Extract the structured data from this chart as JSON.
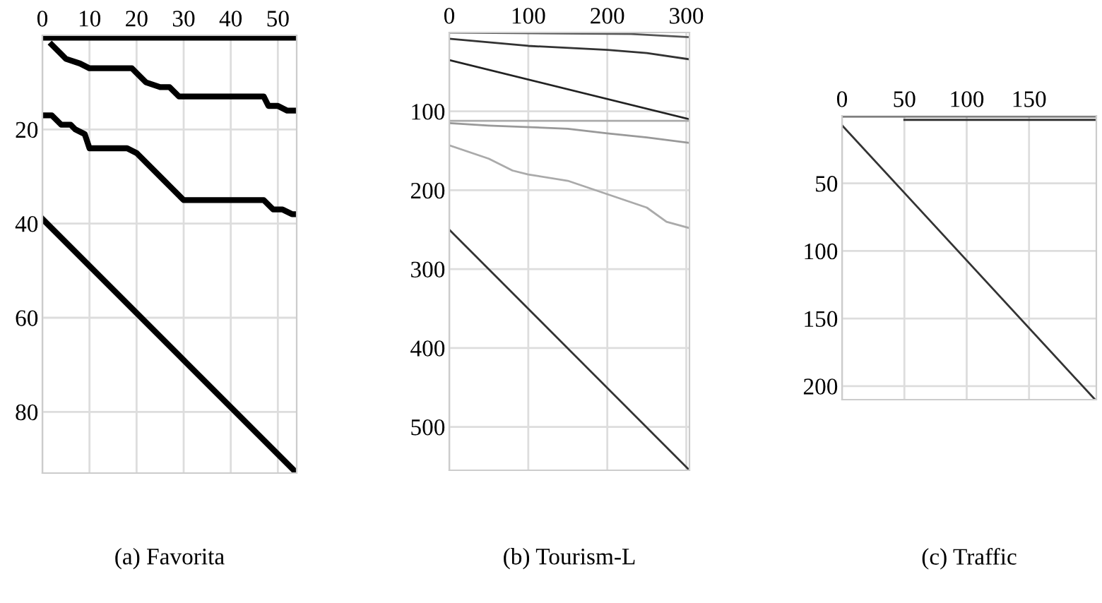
{
  "chart_data": [
    {
      "type": "line",
      "xlabel": "(a) Favorita",
      "xlim": [
        0,
        54
      ],
      "ylim": [
        93,
        0
      ],
      "xticks": [
        0,
        10,
        20,
        30,
        40,
        50
      ],
      "yticks": [
        20,
        40,
        60,
        80
      ],
      "grid": true,
      "legend": false,
      "line_style": "solid",
      "marker": "none",
      "series": [
        {
          "color": "#000000",
          "x": [
            0,
            54
          ],
          "values": [
            0.5,
            0.5
          ]
        },
        {
          "color": "#000000",
          "x": [
            2,
            4,
            5,
            8,
            10,
            19,
            20,
            22,
            25,
            27,
            29,
            47,
            48,
            50,
            52,
            54
          ],
          "values": [
            2,
            4,
            5,
            6,
            7,
            7,
            8,
            10,
            11,
            11,
            13,
            13,
            15,
            15,
            16,
            16
          ]
        },
        {
          "color": "#000000",
          "x": [
            0,
            2,
            4,
            6,
            7,
            9,
            10,
            18,
            20,
            27,
            30,
            47,
            49,
            51,
            53,
            54
          ],
          "values": [
            17,
            17,
            19,
            19,
            20,
            21,
            24,
            24,
            25,
            32,
            35,
            35,
            37,
            37,
            38,
            38
          ]
        },
        {
          "color": "#000000",
          "x": [
            0,
            54
          ],
          "values": [
            39,
            93
          ]
        }
      ]
    },
    {
      "type": "line",
      "xlabel": "(b) Tourism-L",
      "xlim": [
        0,
        304
      ],
      "ylim": [
        555,
        0
      ],
      "xticks": [
        0,
        100,
        200,
        300
      ],
      "yticks": [
        100,
        200,
        300,
        400,
        500
      ],
      "grid": true,
      "legend": false,
      "line_style": "solid",
      "marker": "none",
      "series": [
        {
          "color": "#555555",
          "x": [
            0,
            230,
            304
          ],
          "values": [
            0,
            2,
            6
          ]
        },
        {
          "color": "#333333",
          "x": [
            0,
            100,
            200,
            250,
            304
          ],
          "values": [
            8,
            17,
            22,
            26,
            34
          ]
        },
        {
          "color": "#222222",
          "x": [
            0,
            304
          ],
          "values": [
            35,
            110
          ]
        },
        {
          "color": "#aaaaaa",
          "x": [
            0,
            304
          ],
          "values": [
            112,
            112
          ]
        },
        {
          "color": "#999999",
          "x": [
            0,
            50,
            150,
            200,
            250,
            304
          ],
          "values": [
            115,
            118,
            122,
            128,
            133,
            140
          ]
        },
        {
          "color": "#aaaaaa",
          "x": [
            0,
            50,
            80,
            100,
            150,
            200,
            250,
            275,
            304
          ],
          "values": [
            143,
            160,
            175,
            180,
            188,
            205,
            222,
            240,
            248
          ]
        },
        {
          "color": "#333333",
          "x": [
            0,
            304
          ],
          "values": [
            250,
            555
          ]
        }
      ]
    },
    {
      "type": "line",
      "xlabel": "(c) Traffic",
      "xlim": [
        0,
        204
      ],
      "ylim": [
        210,
        0
      ],
      "xticks": [
        0,
        50,
        100,
        150
      ],
      "yticks": [
        50,
        100,
        150,
        200
      ],
      "grid": true,
      "legend": false,
      "line_style": "solid",
      "marker": "none",
      "series": [
        {
          "color": "#333333",
          "x": [
            0,
            204
          ],
          "values": [
            0.5,
            0.5
          ]
        },
        {
          "color": "#333333",
          "x": [
            50,
            204
          ],
          "values": [
            3,
            3
          ]
        },
        {
          "color": "#333333",
          "x": [
            0,
            203
          ],
          "values": [
            7,
            210
          ]
        }
      ]
    }
  ]
}
